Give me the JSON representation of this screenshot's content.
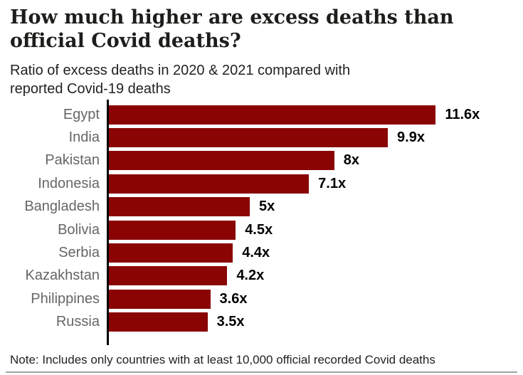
{
  "header": {
    "title": "How much higher are excess deaths than official Covid deaths?",
    "title_lines": [
      "How much higher are excess deaths than",
      "official Covid deaths?"
    ],
    "subtitle": "Ratio of excess deaths in 2020 & 2021 compared with reported Covid-19 deaths",
    "subtitle_lines": [
      "Ratio of excess deaths in 2020 & 2021 compared with",
      "reported Covid-19 deaths"
    ]
  },
  "chart_data": {
    "type": "bar",
    "orientation": "horizontal",
    "title": "How much higher are excess deaths than official Covid deaths?",
    "subtitle": "Ratio of excess deaths in 2020 & 2021 compared with reported Covid-19 deaths",
    "categories": [
      "Egypt",
      "India",
      "Pakistan",
      "Indonesia",
      "Bangladesh",
      "Bolivia",
      "Serbia",
      "Kazakhstan",
      "Philippines",
      "Russia"
    ],
    "values": [
      11.6,
      9.9,
      8,
      7.1,
      5,
      4.5,
      4.4,
      4.2,
      3.6,
      3.5
    ],
    "value_labels": [
      "11.6x",
      "9.9x",
      "8x",
      "7.1x",
      "5x",
      "4.5x",
      "4.4x",
      "4.2x",
      "3.6x",
      "3.5x"
    ],
    "xlabel": "",
    "ylabel": "",
    "xlim": [
      0,
      11.6
    ],
    "grid": false,
    "legend": false,
    "bar_color": "#8A0404",
    "category_label_color": "#666666",
    "value_label_color": "#000000",
    "axis_color": "#000000"
  },
  "footer": {
    "note": "Note: Includes only countries with at least 10,000 official recorded Covid deaths"
  },
  "colors": {
    "background": "#FFFFFF",
    "title": "#1D1D1B",
    "subtitle": "#222222",
    "bar": "#8A0404",
    "category_label": "#666666",
    "divider": "#A3A3A3"
  }
}
